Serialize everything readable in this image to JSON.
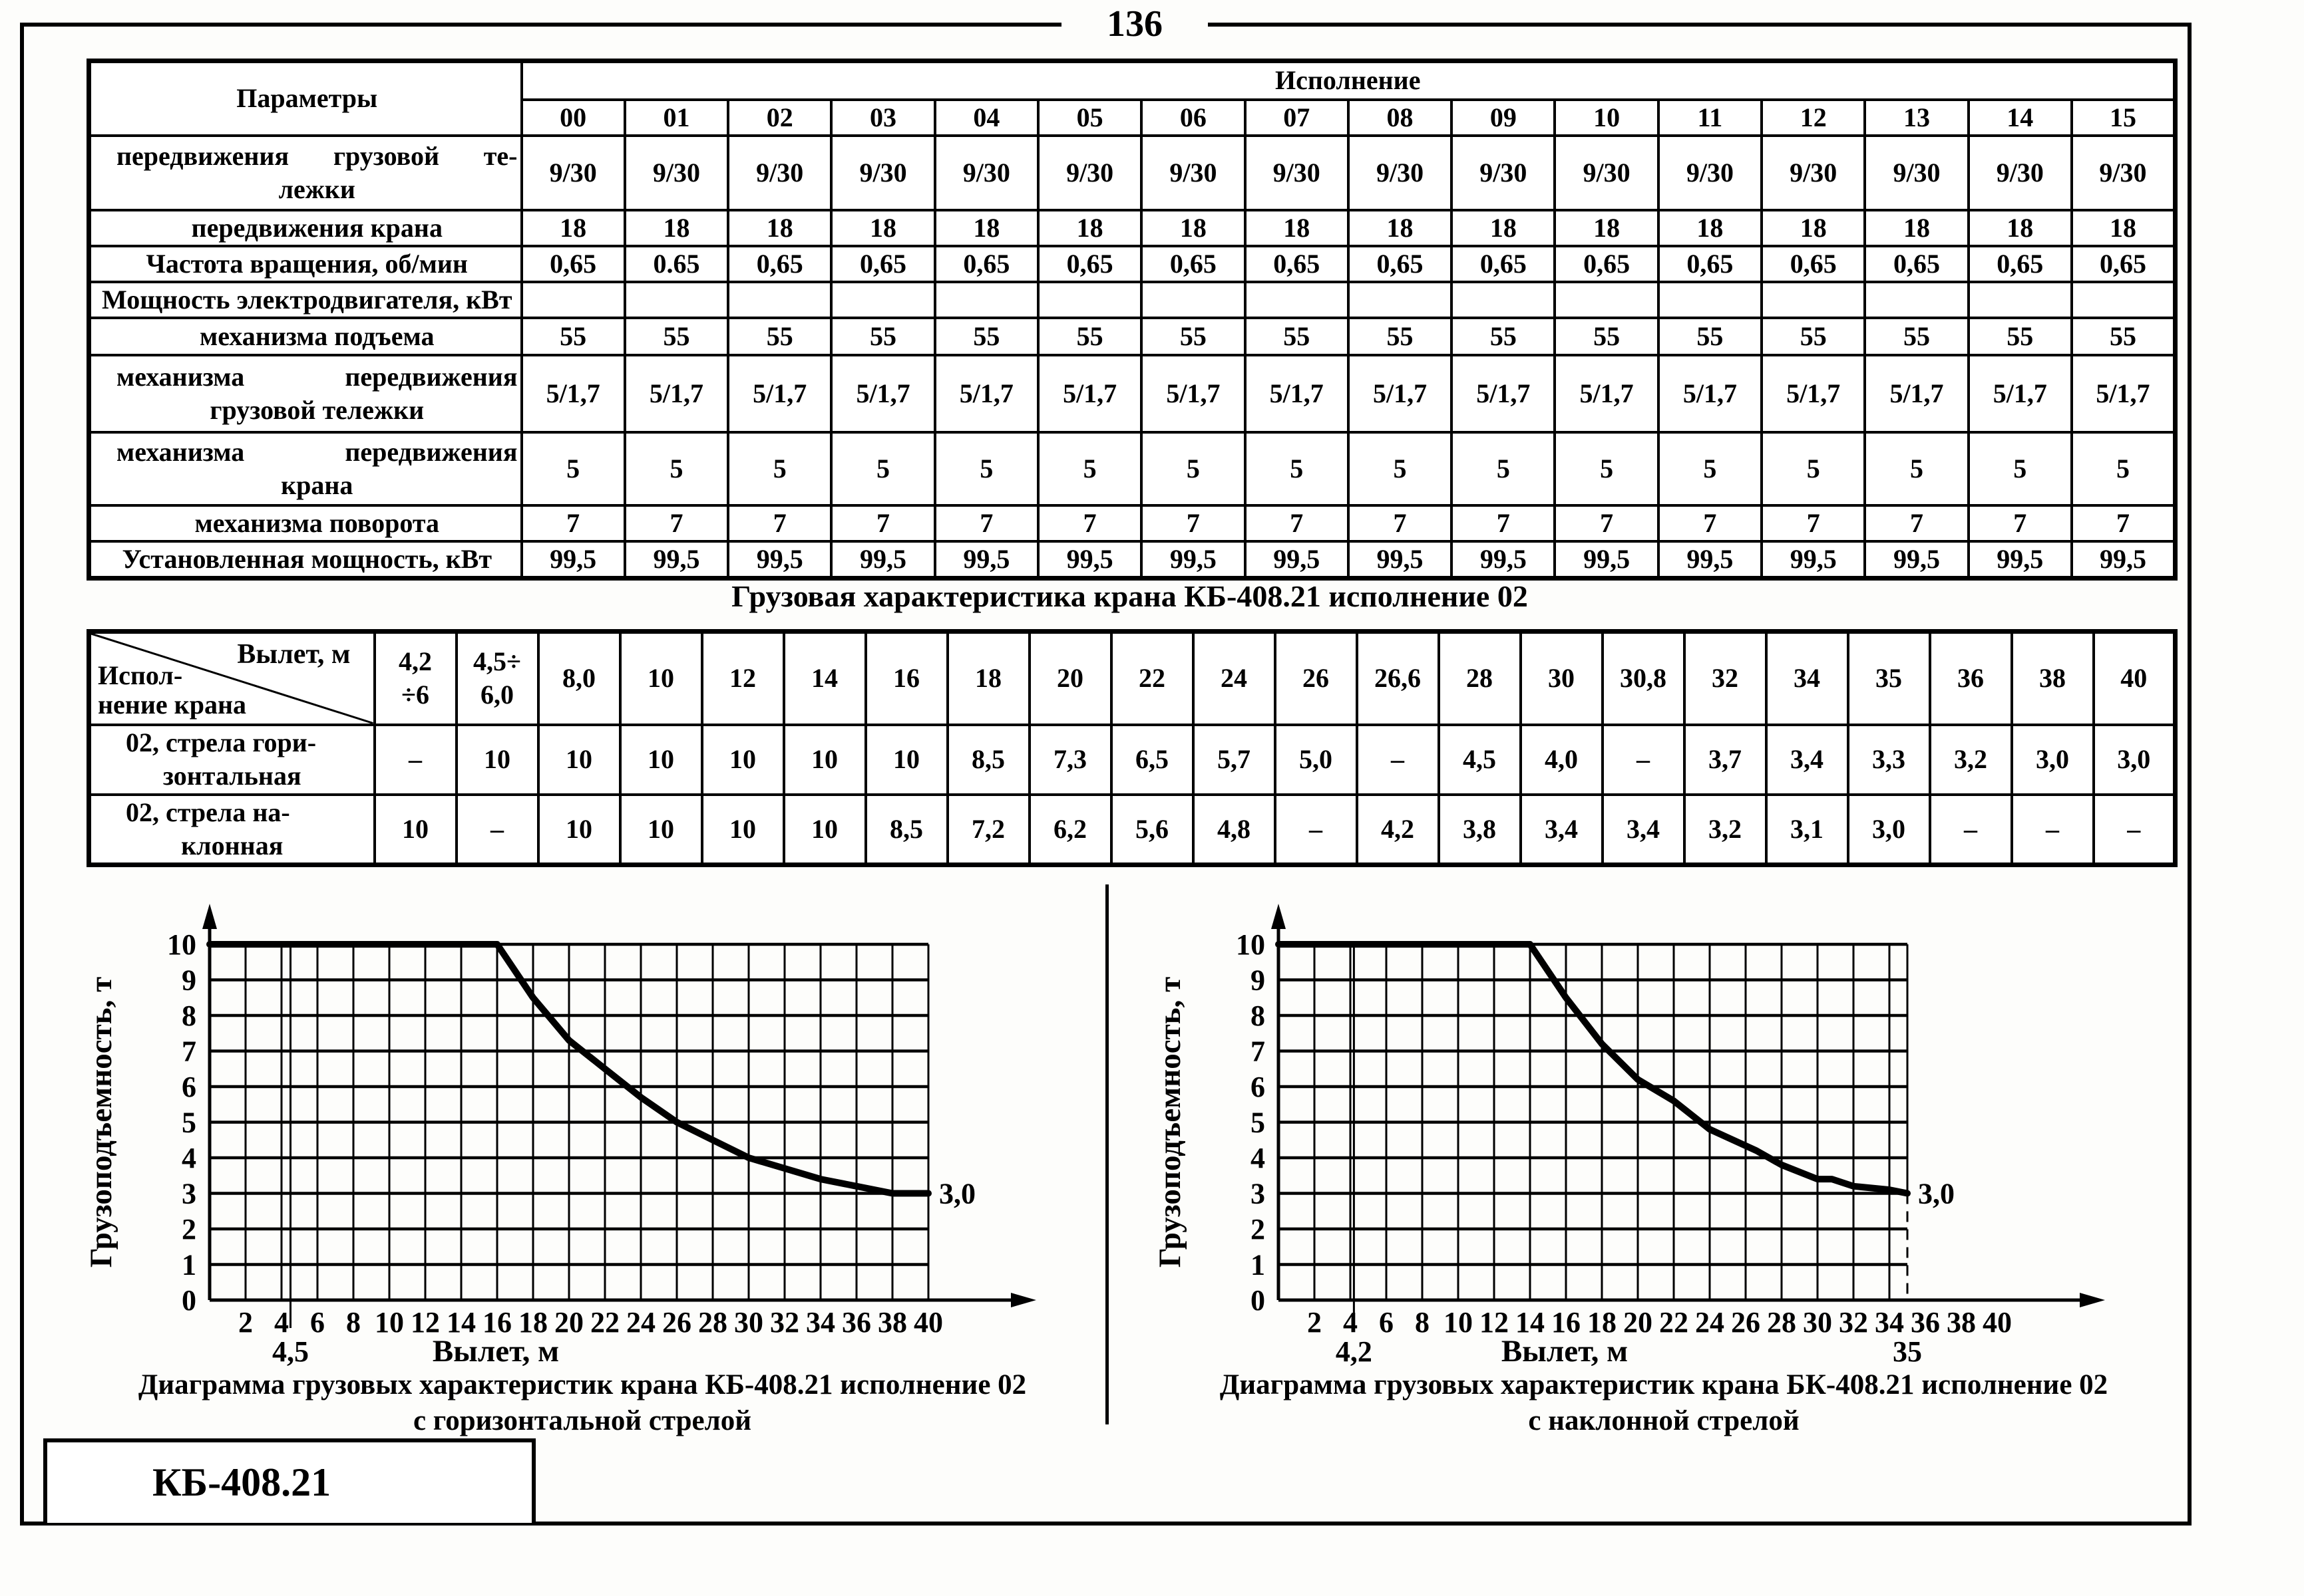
{
  "page": {
    "number": "136",
    "footer_label": "КБ-408.21"
  },
  "parameters_table": {
    "params_header": "Параметры",
    "group_header": "Исполнение",
    "columns": [
      "00",
      "01",
      "02",
      "03",
      "04",
      "05",
      "06",
      "07",
      "08",
      "09",
      "10",
      "11",
      "12",
      "13",
      "14",
      "15"
    ],
    "rows": [
      {
        "label_lines": [
          "передвижения грузовой те-",
          "лежки"
        ],
        "indent": true,
        "justify_first": true,
        "values": [
          "9/30",
          "9/30",
          "9/30",
          "9/30",
          "9/30",
          "9/30",
          "9/30",
          "9/30",
          "9/30",
          "9/30",
          "9/30",
          "9/30",
          "9/30",
          "9/30",
          "9/30",
          "9/30"
        ]
      },
      {
        "label_lines": [
          "передвижения крана"
        ],
        "indent": true,
        "justify_first": false,
        "values": [
          "18",
          "18",
          "18",
          "18",
          "18",
          "18",
          "18",
          "18",
          "18",
          "18",
          "18",
          "18",
          "18",
          "18",
          "18",
          "18"
        ]
      },
      {
        "label_lines": [
          "Частота вращения, об/мин"
        ],
        "indent": false,
        "justify_first": false,
        "values": [
          "0,65",
          "0.65",
          "0,65",
          "0,65",
          "0,65",
          "0,65",
          "0,65",
          "0,65",
          "0,65",
          "0,65",
          "0,65",
          "0,65",
          "0,65",
          "0,65",
          "0,65",
          "0,65"
        ]
      },
      {
        "label_lines": [
          "Мощность электродвигателя, кВт"
        ],
        "indent": false,
        "justify_first": false,
        "values": [
          "",
          "",
          "",
          "",
          "",
          "",
          "",
          "",
          "",
          "",
          "",
          "",
          "",
          "",
          "",
          ""
        ]
      },
      {
        "label_lines": [
          "механизма подъема"
        ],
        "indent": true,
        "justify_first": false,
        "values": [
          "55",
          "55",
          "55",
          "55",
          "55",
          "55",
          "55",
          "55",
          "55",
          "55",
          "55",
          "55",
          "55",
          "55",
          "55",
          "55"
        ]
      },
      {
        "label_lines": [
          "механизма передвижения",
          "грузовой тележки"
        ],
        "indent": true,
        "justify_first": true,
        "values": [
          "5/1,7",
          "5/1,7",
          "5/1,7",
          "5/1,7",
          "5/1,7",
          "5/1,7",
          "5/1,7",
          "5/1,7",
          "5/1,7",
          "5/1,7",
          "5/1,7",
          "5/1,7",
          "5/1,7",
          "5/1,7",
          "5/1,7",
          "5/1,7"
        ]
      },
      {
        "label_lines": [
          "механизма передвижения",
          "крана"
        ],
        "indent": true,
        "justify_first": true,
        "values": [
          "5",
          "5",
          "5",
          "5",
          "5",
          "5",
          "5",
          "5",
          "5",
          "5",
          "5",
          "5",
          "5",
          "5",
          "5",
          "5"
        ]
      },
      {
        "label_lines": [
          "механизма поворота"
        ],
        "indent": true,
        "justify_first": false,
        "values": [
          "7",
          "7",
          "7",
          "7",
          "7",
          "7",
          "7",
          "7",
          "7",
          "7",
          "7",
          "7",
          "7",
          "7",
          "7",
          "7"
        ]
      },
      {
        "label_lines": [
          "Установленная мощность, кВт"
        ],
        "indent": false,
        "justify_first": false,
        "values": [
          "99,5",
          "99,5",
          "99,5",
          "99,5",
          "99,5",
          "99,5",
          "99,5",
          "99,5",
          "99,5",
          "99,5",
          "99,5",
          "99,5",
          "99,5",
          "99,5",
          "99,5",
          "99,5"
        ]
      }
    ]
  },
  "load_table": {
    "title": "Грузовая характеристика крана КБ-408.21 исполнение 02",
    "corner_top": "Вылет, м",
    "corner_bottom_lines": [
      "Испол-",
      "нение крана"
    ],
    "columns": [
      [
        "4,2",
        "÷6"
      ],
      [
        "4,5÷",
        "6,0"
      ],
      [
        "8,0"
      ],
      [
        "10"
      ],
      [
        "12"
      ],
      [
        "14"
      ],
      [
        "16"
      ],
      [
        "18"
      ],
      [
        "20"
      ],
      [
        "22"
      ],
      [
        "24"
      ],
      [
        "26"
      ],
      [
        "26,6"
      ],
      [
        "28"
      ],
      [
        "30"
      ],
      [
        "30,8"
      ],
      [
        "32"
      ],
      [
        "34"
      ],
      [
        "35"
      ],
      [
        "36"
      ],
      [
        "38"
      ],
      [
        "40"
      ]
    ],
    "rows": [
      {
        "label_lines": [
          "02, стрела гори-",
          "зонтальная"
        ],
        "values": [
          "–",
          "10",
          "10",
          "10",
          "10",
          "10",
          "10",
          "8,5",
          "7,3",
          "6,5",
          "5,7",
          "5,0",
          "–",
          "4,5",
          "4,0",
          "–",
          "3,7",
          "3,4",
          "3,3",
          "3,2",
          "3,0",
          "3,0"
        ]
      },
      {
        "label_lines": [
          "02, стрела на-",
          "клонная"
        ],
        "values": [
          "10",
          "–",
          "10",
          "10",
          "10",
          "10",
          "8,5",
          "7,2",
          "6,2",
          "5,6",
          "4,8",
          "–",
          "4,2",
          "3,8",
          "3,4",
          "3,4",
          "3,2",
          "3,1",
          "3,0",
          "–",
          "–",
          "–"
        ]
      }
    ]
  },
  "chart_data": [
    {
      "type": "line",
      "title_caption_lines": [
        "Диаграмма грузовых характеристик крана КБ-408.21 исполнение 02",
        "с горизонтальной стрелой"
      ],
      "caption_lines": [
        "Диаграмма грузовых характеристик крана КБ-408.21 исполнение 02",
        "с горизонтальной стрелой"
      ],
      "xlabel": "Вылет, м",
      "ylabel": "Грузоподъемность, т",
      "ylim": [
        0,
        10
      ],
      "yticks": [
        0,
        1,
        2,
        3,
        4,
        5,
        6,
        7,
        8,
        9,
        10
      ],
      "xticks": [
        2,
        4,
        6,
        8,
        10,
        12,
        14,
        16,
        18,
        20,
        22,
        24,
        26,
        28,
        30,
        32,
        34,
        36,
        38,
        40
      ],
      "grid_xmax": 40,
      "grid": "on",
      "min_radius_line": {
        "x": 4.5,
        "label": "4,5"
      },
      "end_label": "3,0",
      "curve": [
        [
          0,
          10
        ],
        [
          16,
          10
        ],
        [
          18,
          8.5
        ],
        [
          20,
          7.3
        ],
        [
          22,
          6.5
        ],
        [
          24,
          5.7
        ],
        [
          26,
          5.0
        ],
        [
          28,
          4.5
        ],
        [
          30,
          4.0
        ],
        [
          32,
          3.7
        ],
        [
          34,
          3.4
        ],
        [
          36,
          3.2
        ],
        [
          38,
          3.0
        ],
        [
          40,
          3.0
        ]
      ]
    },
    {
      "type": "line",
      "caption_lines": [
        "Диаграмма грузовых характеристик крана БК-408.21 исполнение 02",
        "с наклонной стрелой"
      ],
      "xlabel": "Вылет, м",
      "ylabel": "Грузоподъемность, т",
      "ylim": [
        0,
        10
      ],
      "yticks": [
        0,
        1,
        2,
        3,
        4,
        5,
        6,
        7,
        8,
        9,
        10
      ],
      "xticks": [
        2,
        4,
        6,
        8,
        10,
        12,
        14,
        16,
        18,
        20,
        22,
        24,
        26,
        28,
        30,
        32,
        34,
        36,
        38,
        40
      ],
      "grid_xmax": 35,
      "grid": "on",
      "min_radius_line": {
        "x": 4.2,
        "label": "4,2"
      },
      "boundary_line": {
        "x": 35,
        "label": "35",
        "dash_below": 3
      },
      "end_label": "3,0",
      "curve": [
        [
          0,
          10
        ],
        [
          14,
          10
        ],
        [
          16,
          8.5
        ],
        [
          18,
          7.2
        ],
        [
          20,
          6.2
        ],
        [
          22,
          5.6
        ],
        [
          24,
          4.8
        ],
        [
          26.6,
          4.2
        ],
        [
          28,
          3.8
        ],
        [
          30,
          3.4
        ],
        [
          30.8,
          3.4
        ],
        [
          32,
          3.2
        ],
        [
          34,
          3.1
        ],
        [
          35,
          3.0
        ]
      ]
    }
  ]
}
